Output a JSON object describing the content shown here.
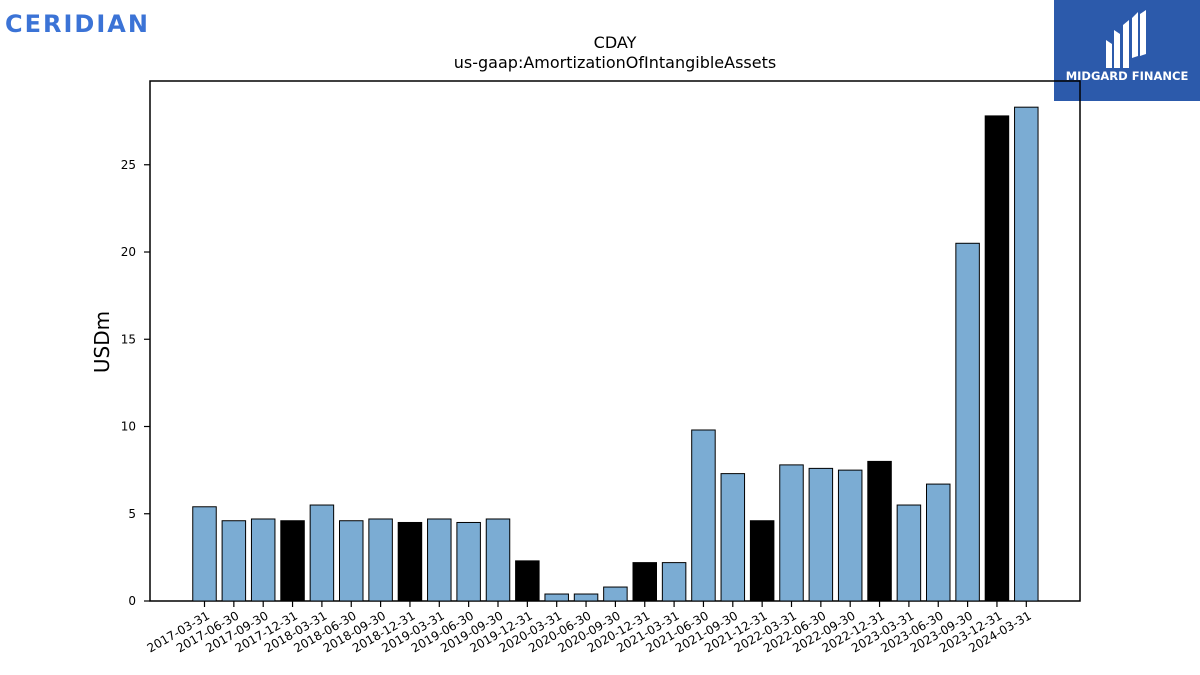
{
  "header": {
    "company_logo_text": "CERIDIAN",
    "brand_text": "MIDGARD FINANCE"
  },
  "colors": {
    "bar_default": "#7bacd3",
    "bar_highlight": "#000000",
    "logo_text": "#3b73d6",
    "brand_badge": "#2c5aab"
  },
  "chart_data": {
    "type": "bar",
    "title": "CDAY",
    "subtitle": "us-gaap:AmortizationOfIntangibleAssets",
    "xlabel": "",
    "ylabel": "USDm",
    "ylim": [
      0,
      29.8
    ],
    "yticks": [
      0,
      5,
      10,
      15,
      20,
      25
    ],
    "grid": false,
    "legend": "none",
    "categories": [
      "2017-03-31",
      "2017-06-30",
      "2017-09-30",
      "2017-12-31",
      "2018-03-31",
      "2018-06-30",
      "2018-09-30",
      "2018-12-31",
      "2019-03-31",
      "2019-06-30",
      "2019-09-30",
      "2019-12-31",
      "2020-03-31",
      "2020-06-30",
      "2020-09-30",
      "2020-12-31",
      "2021-03-31",
      "2021-06-30",
      "2021-09-30",
      "2021-12-31",
      "2022-03-31",
      "2022-06-30",
      "2022-09-30",
      "2022-12-31",
      "2023-03-31",
      "2023-06-30",
      "2023-09-30",
      "2023-12-31",
      "2024-03-31"
    ],
    "values": [
      5.4,
      4.6,
      4.7,
      4.6,
      5.5,
      4.6,
      4.7,
      4.5,
      4.7,
      4.5,
      4.7,
      2.3,
      0.4,
      0.4,
      0.8,
      2.2,
      2.2,
      9.8,
      7.3,
      4.6,
      7.8,
      7.6,
      7.5,
      8.0,
      5.5,
      6.7,
      20.5,
      27.8,
      28.3
    ],
    "highlight": [
      false,
      false,
      false,
      true,
      false,
      false,
      false,
      true,
      false,
      false,
      false,
      true,
      false,
      false,
      false,
      true,
      false,
      false,
      false,
      true,
      false,
      false,
      false,
      true,
      false,
      false,
      false,
      true,
      false
    ]
  }
}
